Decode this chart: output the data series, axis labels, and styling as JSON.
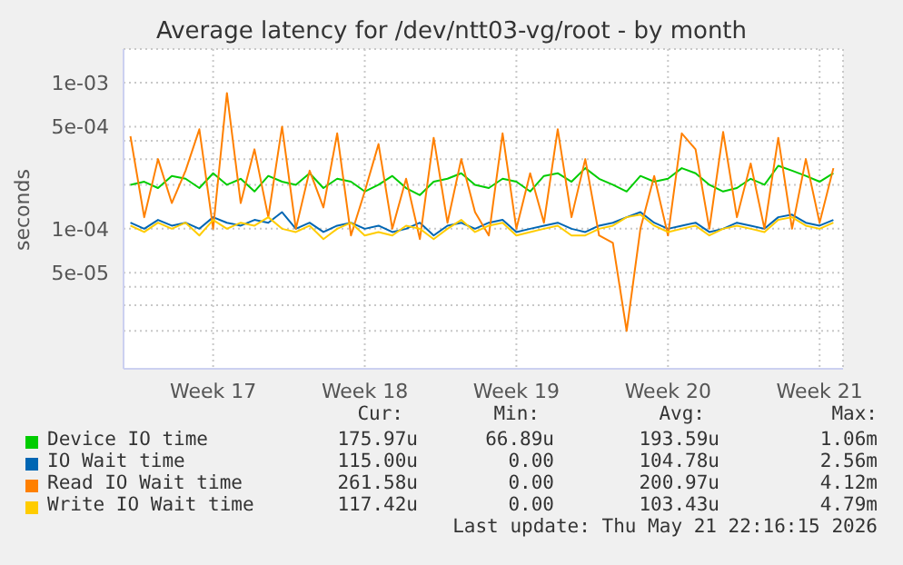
{
  "chart_data": {
    "type": "line",
    "title": "Average latency for /dev/ntt03-vg/root - by month",
    "ylabel": "seconds",
    "log": "y",
    "grid": true,
    "legend": "bottom",
    "marker": "none",
    "line_style": "solid",
    "categories": [
      null,
      null,
      null,
      null,
      null,
      null,
      "Week 17",
      null,
      null,
      null,
      null,
      null,
      null,
      null,
      null,
      null,
      null,
      "Week 18",
      null,
      null,
      null,
      null,
      null,
      null,
      null,
      null,
      null,
      null,
      "Week 19",
      null,
      null,
      null,
      null,
      null,
      null,
      null,
      null,
      null,
      null,
      "Week 20",
      null,
      null,
      null,
      null,
      null,
      null,
      null,
      null,
      null,
      null,
      "Week 21",
      null
    ],
    "ylim": [
      1.1e-05,
      0.0017
    ],
    "yticks": [
      {
        "value": 2e-05,
        "label": null
      },
      {
        "value": 3e-05,
        "label": null
      },
      {
        "value": 4e-05,
        "label": null
      },
      {
        "value": 5e-05,
        "label": "5e-05"
      },
      {
        "value": 0.0001,
        "label": "1e-04"
      },
      {
        "value": 0.0002,
        "label": null
      },
      {
        "value": 0.0003,
        "label": null
      },
      {
        "value": 0.0004,
        "label": null
      },
      {
        "value": 0.0005,
        "label": "5e-04"
      },
      {
        "value": 0.001,
        "label": "1e-03"
      }
    ],
    "series": [
      {
        "name": "Device IO time",
        "color": "#00cc00",
        "values": [
          0.0002,
          0.00021,
          0.00019,
          0.00023,
          0.00022,
          0.00019,
          0.00024,
          0.0002,
          0.00022,
          0.00018,
          0.00023,
          0.00021,
          0.0002,
          0.00024,
          0.00019,
          0.00022,
          0.00021,
          0.00018,
          0.0002,
          0.00023,
          0.00019,
          0.00017,
          0.00021,
          0.00022,
          0.00024,
          0.0002,
          0.00019,
          0.00022,
          0.00021,
          0.00018,
          0.00023,
          0.00024,
          0.00021,
          0.00026,
          0.00022,
          0.0002,
          0.00018,
          0.00023,
          0.00021,
          0.00022,
          0.00026,
          0.00024,
          0.0002,
          0.00018,
          0.00019,
          0.00022,
          0.0002,
          0.00027,
          0.00025,
          0.00023,
          0.00021,
          0.00024
        ]
      },
      {
        "name": "IO Wait time",
        "color": "#0066b3",
        "values": [
          0.00011,
          0.0001,
          0.000115,
          0.000105,
          0.00011,
          0.0001,
          0.00012,
          0.00011,
          0.000105,
          0.000115,
          0.00011,
          0.00013,
          0.0001,
          0.00011,
          9.5e-05,
          0.000105,
          0.00011,
          0.0001,
          0.000105,
          9.5e-05,
          0.0001,
          0.00011,
          9e-05,
          0.000105,
          0.00011,
          0.0001,
          0.00011,
          0.000115,
          9.5e-05,
          0.0001,
          0.000105,
          0.00011,
          0.0001,
          9.5e-05,
          0.000105,
          0.00011,
          0.00012,
          0.00013,
          0.00011,
          0.0001,
          0.000105,
          0.00011,
          9.5e-05,
          0.0001,
          0.00011,
          0.000105,
          0.0001,
          0.00012,
          0.000125,
          0.00011,
          0.000105,
          0.000115
        ]
      },
      {
        "name": "Read IO Wait time",
        "color": "#ff8000",
        "values": [
          0.00043,
          0.00012,
          0.0003,
          0.00015,
          0.00025,
          0.00048,
          0.0001,
          0.00085,
          0.00015,
          0.00035,
          0.00012,
          0.0005,
          0.0001,
          0.00025,
          0.00014,
          0.00045,
          9e-05,
          0.00018,
          0.00038,
          0.0001,
          0.00022,
          8.5e-05,
          0.00042,
          0.00011,
          0.0003,
          0.00013,
          9e-05,
          0.00045,
          0.0001,
          0.00024,
          0.00011,
          0.00048,
          0.00012,
          0.0003,
          9e-05,
          8e-05,
          2e-05,
          0.0001,
          0.00023,
          9e-05,
          0.00045,
          0.00035,
          0.0001,
          0.00046,
          0.00012,
          0.00028,
          0.0001,
          0.00042,
          0.0001,
          0.0003,
          0.00011,
          0.00026
        ]
      },
      {
        "name": "Write IO Wait time",
        "color": "#ffcc00",
        "values": [
          0.000105,
          9.5e-05,
          0.00011,
          0.0001,
          0.00011,
          9e-05,
          0.000115,
          0.0001,
          0.00011,
          0.000105,
          0.00012,
          0.0001,
          9.5e-05,
          0.000105,
          8.5e-05,
          0.0001,
          0.00011,
          9e-05,
          9.5e-05,
          9e-05,
          0.000105,
          0.0001,
          8.5e-05,
          0.0001,
          0.000115,
          9.5e-05,
          0.000105,
          0.00011,
          9e-05,
          9.5e-05,
          0.0001,
          0.000105,
          9e-05,
          9e-05,
          0.0001,
          0.000105,
          0.00012,
          0.000125,
          0.000105,
          9.5e-05,
          0.0001,
          0.000105,
          9e-05,
          0.0001,
          0.000105,
          0.0001,
          9.5e-05,
          0.000115,
          0.00012,
          0.000105,
          0.0001,
          0.00011
        ]
      }
    ],
    "annotations": [
      "Cur:",
      "Min:",
      "Avg:",
      "Max:",
      "175.97u",
      "66.89u",
      "193.59u",
      "1.06m",
      "115.00u",
      "0.00",
      "104.78u",
      "2.56m",
      "261.58u",
      "0.00",
      "200.97u",
      "4.12m",
      "117.42u",
      "0.00",
      "103.43u",
      "4.79m",
      "Last update: Thu May 21 22:16:15 2026"
    ]
  }
}
